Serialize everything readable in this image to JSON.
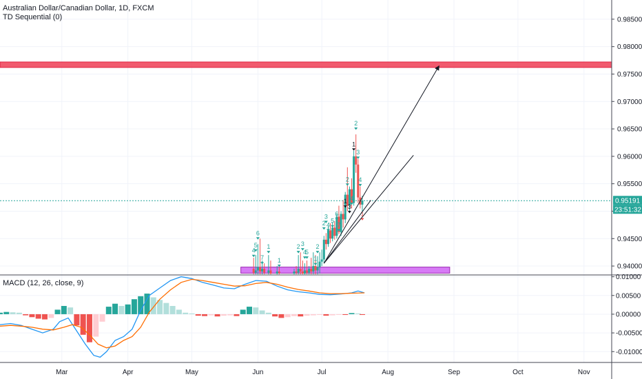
{
  "chart_data": {
    "type": "candlestick",
    "symbol_title": "Australian Dollar/Canadian Dollar, 1D, FXCM",
    "indicator_label": "TD Sequential (0)",
    "macd_label": "MACD (12, 26, close, 9)",
    "price_axis": {
      "ylim": [
        0.9385,
        0.9885
      ],
      "ticks": [
        "0.98500",
        "0.98000",
        "0.97500",
        "0.97000",
        "0.96500",
        "0.96000",
        "0.95500",
        "0.95000",
        "0.94500",
        "0.94000"
      ]
    },
    "macd_axis": {
      "ylim": [
        -0.0129,
        0.0103
      ],
      "ticks": [
        "0.01000",
        "0.00500",
        "0.00000",
        "-0.00500",
        "-0.01000"
      ]
    },
    "time_axis": {
      "labels": [
        "Mar",
        "Apr",
        "May",
        "Jun",
        "Jul",
        "Aug",
        "Sep",
        "Oct",
        "Nov"
      ],
      "label_days": [
        29,
        60,
        90,
        121,
        151,
        182,
        213,
        243,
        274
      ],
      "xlim": [
        0,
        287
      ]
    },
    "current_price": {
      "value": 0.95191,
      "label": "0.95191",
      "countdown": "23:51:32"
    },
    "zones": [
      {
        "name": "resistance",
        "y_from": 0.9762,
        "y_to": 0.9772,
        "x_from": 0,
        "x_to": 287,
        "fill": "#f0485e"
      },
      {
        "name": "support",
        "y_from": 0.9387,
        "y_to": 0.9398,
        "x_from": 113,
        "x_to": 211,
        "fill": "#d36cf5"
      }
    ],
    "trendlines": [
      {
        "x1": 152,
        "y1": 0.9405,
        "x2": 194,
        "y2": 0.9602
      },
      {
        "x1": 152,
        "y1": 0.9405,
        "x2": 206,
        "y2": 0.9765,
        "arrow": true
      },
      {
        "x1": 152,
        "y1": 0.9405,
        "x2": 174,
        "y2": 0.952
      }
    ],
    "candles": [
      {
        "day": 119,
        "open": 0.9395,
        "high": 0.9415,
        "low": 0.9385,
        "close": 0.9388
      },
      {
        "day": 120,
        "open": 0.9388,
        "high": 0.942,
        "low": 0.9385,
        "close": 0.9392
      },
      {
        "day": 121,
        "open": 0.9392,
        "high": 0.944,
        "low": 0.9385,
        "close": 0.9398
      },
      {
        "day": 122,
        "open": 0.9398,
        "high": 0.945,
        "low": 0.9385,
        "close": 0.939
      },
      {
        "day": 123,
        "open": 0.939,
        "high": 0.941,
        "low": 0.9385,
        "close": 0.9395
      },
      {
        "day": 124,
        "open": 0.9395,
        "high": 0.9405,
        "low": 0.9385,
        "close": 0.9388
      },
      {
        "day": 126,
        "open": 0.9388,
        "high": 0.942,
        "low": 0.9385,
        "close": 0.9392
      },
      {
        "day": 127,
        "open": 0.9392,
        "high": 0.941,
        "low": 0.9385,
        "close": 0.9386
      },
      {
        "day": 130,
        "open": 0.9386,
        "high": 0.94,
        "low": 0.9385,
        "close": 0.939
      },
      {
        "day": 131,
        "open": 0.939,
        "high": 0.9398,
        "low": 0.9385,
        "close": 0.9387
      },
      {
        "day": 138,
        "open": 0.9386,
        "high": 0.9395,
        "low": 0.9385,
        "close": 0.939
      },
      {
        "day": 139,
        "open": 0.939,
        "high": 0.94,
        "low": 0.9385,
        "close": 0.9388
      },
      {
        "day": 140,
        "open": 0.9388,
        "high": 0.942,
        "low": 0.9385,
        "close": 0.9395
      },
      {
        "day": 141,
        "open": 0.9395,
        "high": 0.9425,
        "low": 0.9385,
        "close": 0.939
      },
      {
        "day": 142,
        "open": 0.939,
        "high": 0.941,
        "low": 0.9385,
        "close": 0.9386
      },
      {
        "day": 143,
        "open": 0.9386,
        "high": 0.9405,
        "low": 0.9385,
        "close": 0.9392
      },
      {
        "day": 144,
        "open": 0.9392,
        "high": 0.941,
        "low": 0.9385,
        "close": 0.9388
      },
      {
        "day": 145,
        "open": 0.9388,
        "high": 0.94,
        "low": 0.9385,
        "close": 0.9395
      },
      {
        "day": 146,
        "open": 0.9395,
        "high": 0.9415,
        "low": 0.9385,
        "close": 0.939
      },
      {
        "day": 147,
        "open": 0.939,
        "high": 0.9425,
        "low": 0.9385,
        "close": 0.94
      },
      {
        "day": 148,
        "open": 0.94,
        "high": 0.942,
        "low": 0.9385,
        "close": 0.9392
      },
      {
        "day": 149,
        "open": 0.9392,
        "high": 0.9418,
        "low": 0.9385,
        "close": 0.9398
      },
      {
        "day": 150,
        "open": 0.9398,
        "high": 0.9425,
        "low": 0.9386,
        "close": 0.9408
      },
      {
        "day": 151,
        "open": 0.9408,
        "high": 0.943,
        "low": 0.94,
        "close": 0.9412
      },
      {
        "day": 152,
        "open": 0.9412,
        "high": 0.9455,
        "low": 0.9405,
        "close": 0.9448
      },
      {
        "day": 153,
        "open": 0.9448,
        "high": 0.946,
        "low": 0.943,
        "close": 0.944
      },
      {
        "day": 154,
        "open": 0.944,
        "high": 0.9472,
        "low": 0.9435,
        "close": 0.9465
      },
      {
        "day": 155,
        "open": 0.9465,
        "high": 0.9478,
        "low": 0.9442,
        "close": 0.945
      },
      {
        "day": 156,
        "open": 0.945,
        "high": 0.948,
        "low": 0.9445,
        "close": 0.947
      },
      {
        "day": 157,
        "open": 0.947,
        "high": 0.9482,
        "low": 0.9448,
        "close": 0.9455
      },
      {
        "day": 158,
        "open": 0.9455,
        "high": 0.9495,
        "low": 0.945,
        "close": 0.949
      },
      {
        "day": 159,
        "open": 0.949,
        "high": 0.951,
        "low": 0.9458,
        "close": 0.9462
      },
      {
        "day": 160,
        "open": 0.9462,
        "high": 0.95,
        "low": 0.9455,
        "close": 0.9495
      },
      {
        "day": 161,
        "open": 0.9495,
        "high": 0.952,
        "low": 0.947,
        "close": 0.9485
      },
      {
        "day": 162,
        "open": 0.9485,
        "high": 0.9535,
        "low": 0.9478,
        "close": 0.953
      },
      {
        "day": 163,
        "open": 0.953,
        "high": 0.958,
        "low": 0.95,
        "close": 0.951
      },
      {
        "day": 164,
        "open": 0.951,
        "high": 0.9545,
        "low": 0.95,
        "close": 0.954
      },
      {
        "day": 165,
        "open": 0.954,
        "high": 0.956,
        "low": 0.9505,
        "close": 0.9515
      },
      {
        "day": 166,
        "open": 0.9515,
        "high": 0.961,
        "low": 0.951,
        "close": 0.96
      },
      {
        "day": 167,
        "open": 0.96,
        "high": 0.964,
        "low": 0.957,
        "close": 0.9585
      },
      {
        "day": 168,
        "open": 0.9585,
        "high": 0.9595,
        "low": 0.9515,
        "close": 0.9525
      },
      {
        "day": 169,
        "open": 0.9525,
        "high": 0.9545,
        "low": 0.9505,
        "close": 0.9512
      },
      {
        "day": 170,
        "open": 0.9512,
        "high": 0.9528,
        "low": 0.9495,
        "close": 0.9519
      }
    ],
    "td_counts": [
      {
        "day": 119,
        "value": "4",
        "color": "#26a69a",
        "y": 0.9418
      },
      {
        "day": 120,
        "value": "5",
        "color": "#26a69a",
        "y": 0.9428
      },
      {
        "day": 121,
        "value": "6",
        "color": "#26a69a",
        "y": 0.945
      },
      {
        "day": 123,
        "value": "7",
        "color": "#26a69a",
        "y": 0.9405
      },
      {
        "day": 126,
        "value": "1",
        "color": "#26a69a",
        "y": 0.9425
      },
      {
        "day": 131,
        "value": "1",
        "color": "#26a69a",
        "y": 0.94
      },
      {
        "day": 140,
        "value": "2",
        "color": "#26a69a",
        "y": 0.9425
      },
      {
        "day": 142,
        "value": "3",
        "color": "#26a69a",
        "y": 0.943
      },
      {
        "day": 143,
        "value": "4",
        "color": "#26a69a",
        "y": 0.9415
      },
      {
        "day": 144,
        "value": "5",
        "color": "#26a69a",
        "y": 0.9415
      },
      {
        "day": 148,
        "value": "1",
        "color": "#26a69a",
        "y": 0.9403
      },
      {
        "day": 149,
        "value": "2",
        "color": "#26a69a",
        "y": 0.9425
      },
      {
        "day": 152,
        "value": "2",
        "color": "#26a69a",
        "y": 0.9468
      },
      {
        "day": 153,
        "value": "3",
        "color": "#26a69a",
        "y": 0.948
      },
      {
        "day": 154,
        "value": "4",
        "color": "#26a69a",
        "y": 0.9465
      },
      {
        "day": 156,
        "value": "5",
        "color": "#26a69a",
        "y": 0.9472
      },
      {
        "day": 158,
        "value": "6",
        "color": "#26a69a",
        "y": 0.9485
      },
      {
        "day": 159,
        "value": "7",
        "color": "#26a69a",
        "y": 0.9465
      },
      {
        "day": 162,
        "value": "1",
        "color": "#131722",
        "y": 0.9508
      },
      {
        "day": 163,
        "value": "2",
        "color": "#26a69a",
        "y": 0.9548
      },
      {
        "day": 164,
        "value": "3",
        "color": "#131722",
        "y": 0.9498
      },
      {
        "day": 165,
        "value": "4",
        "color": "#26a69a",
        "y": 0.9513
      },
      {
        "day": 166,
        "value": "1",
        "color": "#131722",
        "y": 0.9612
      },
      {
        "day": 167,
        "value": "2",
        "color": "#26a69a",
        "y": 0.965
      },
      {
        "day": 168,
        "value": "3",
        "color": "#26a69a",
        "y": 0.9597
      },
      {
        "day": 169,
        "value": "4",
        "color": "#26a69a",
        "y": 0.9547
      },
      {
        "day": 170,
        "value": "1",
        "color": "#ef5350",
        "y": 0.9485
      }
    ],
    "macd": {
      "line_color": "#2196f3",
      "signal_color": "#ff6d00",
      "histogram": [
        {
          "day": 0,
          "value": 0.0004
        },
        {
          "day": 3,
          "value": 0.0006
        },
        {
          "day": 6,
          "value": 0.0005
        },
        {
          "day": 9,
          "value": 0.0004
        },
        {
          "day": 12,
          "value": -0.0003
        },
        {
          "day": 15,
          "value": -0.0008
        },
        {
          "day": 18,
          "value": -0.0012
        },
        {
          "day": 21,
          "value": -0.0014
        },
        {
          "day": 24,
          "value": -0.001
        },
        {
          "day": 27,
          "value": 0.0012
        },
        {
          "day": 30,
          "value": 0.0022
        },
        {
          "day": 33,
          "value": 0.0018
        },
        {
          "day": 36,
          "value": -0.003
        },
        {
          "day": 39,
          "value": -0.0055
        },
        {
          "day": 42,
          "value": -0.0075
        },
        {
          "day": 45,
          "value": -0.006
        },
        {
          "day": 48,
          "value": -0.002
        },
        {
          "day": 51,
          "value": 0.002
        },
        {
          "day": 54,
          "value": 0.0028
        },
        {
          "day": 57,
          "value": 0.0022
        },
        {
          "day": 60,
          "value": 0.0026
        },
        {
          "day": 63,
          "value": 0.004
        },
        {
          "day": 66,
          "value": 0.0048
        },
        {
          "day": 69,
          "value": 0.0055
        },
        {
          "day": 72,
          "value": 0.0045
        },
        {
          "day": 75,
          "value": 0.0038
        },
        {
          "day": 78,
          "value": 0.003
        },
        {
          "day": 81,
          "value": 0.0022
        },
        {
          "day": 84,
          "value": 0.0012
        },
        {
          "day": 87,
          "value": 0.0004
        },
        {
          "day": 90,
          "value": 0.0002
        },
        {
          "day": 93,
          "value": -0.0004
        },
        {
          "day": 96,
          "value": -0.0005
        },
        {
          "day": 99,
          "value": -0.0003
        },
        {
          "day": 102,
          "value": -0.0006
        },
        {
          "day": 105,
          "value": -0.0004
        },
        {
          "day": 108,
          "value": -0.0003
        },
        {
          "day": 111,
          "value": -0.0005
        },
        {
          "day": 114,
          "value": 0.0012
        },
        {
          "day": 117,
          "value": 0.002
        },
        {
          "day": 120,
          "value": 0.0018
        },
        {
          "day": 123,
          "value": 0.001
        },
        {
          "day": 126,
          "value": 0.0004
        },
        {
          "day": 129,
          "value": -0.0006
        },
        {
          "day": 132,
          "value": -0.001
        },
        {
          "day": 135,
          "value": -0.0008
        },
        {
          "day": 138,
          "value": -0.0005
        },
        {
          "day": 141,
          "value": -0.0006
        },
        {
          "day": 144,
          "value": -0.0004
        },
        {
          "day": 147,
          "value": -0.0003
        },
        {
          "day": 150,
          "value": -0.0002
        },
        {
          "day": 153,
          "value": -0.0004
        },
        {
          "day": 156,
          "value": -0.0003
        },
        {
          "day": 159,
          "value": -0.0001
        },
        {
          "day": 162,
          "value": -0.0002
        },
        {
          "day": 165,
          "value": 0.0003
        },
        {
          "day": 168,
          "value": 0.0002
        },
        {
          "day": 170,
          "value": -0.0002
        }
      ],
      "macd_line": [
        {
          "day": 0,
          "value": -0.0028
        },
        {
          "day": 5,
          "value": -0.0025
        },
        {
          "day": 10,
          "value": -0.003
        },
        {
          "day": 15,
          "value": -0.004
        },
        {
          "day": 20,
          "value": -0.005
        },
        {
          "day": 25,
          "value": -0.004
        },
        {
          "day": 28,
          "value": -0.002
        },
        {
          "day": 32,
          "value": -0.001
        },
        {
          "day": 36,
          "value": -0.0045
        },
        {
          "day": 40,
          "value": -0.008
        },
        {
          "day": 44,
          "value": -0.011
        },
        {
          "day": 47,
          "value": -0.0115
        },
        {
          "day": 50,
          "value": -0.01
        },
        {
          "day": 54,
          "value": -0.007
        },
        {
          "day": 58,
          "value": -0.006
        },
        {
          "day": 62,
          "value": -0.004
        },
        {
          "day": 66,
          "value": 0.001
        },
        {
          "day": 70,
          "value": 0.005
        },
        {
          "day": 75,
          "value": 0.007
        },
        {
          "day": 80,
          "value": 0.009
        },
        {
          "day": 85,
          "value": 0.01
        },
        {
          "day": 90,
          "value": 0.0095
        },
        {
          "day": 95,
          "value": 0.0085
        },
        {
          "day": 100,
          "value": 0.0078
        },
        {
          "day": 105,
          "value": 0.007
        },
        {
          "day": 110,
          "value": 0.0068
        },
        {
          "day": 115,
          "value": 0.008
        },
        {
          "day": 120,
          "value": 0.009
        },
        {
          "day": 125,
          "value": 0.0088
        },
        {
          "day": 130,
          "value": 0.0075
        },
        {
          "day": 135,
          "value": 0.0065
        },
        {
          "day": 140,
          "value": 0.006
        },
        {
          "day": 145,
          "value": 0.0057
        },
        {
          "day": 150,
          "value": 0.0053
        },
        {
          "day": 155,
          "value": 0.0052
        },
        {
          "day": 160,
          "value": 0.0054
        },
        {
          "day": 165,
          "value": 0.0057
        },
        {
          "day": 168,
          "value": 0.0062
        },
        {
          "day": 171,
          "value": 0.0057
        }
      ],
      "signal_line": [
        {
          "day": 0,
          "value": -0.0032
        },
        {
          "day": 5,
          "value": -0.003
        },
        {
          "day": 10,
          "value": -0.0032
        },
        {
          "day": 15,
          "value": -0.0035
        },
        {
          "day": 20,
          "value": -0.004
        },
        {
          "day": 25,
          "value": -0.0042
        },
        {
          "day": 30,
          "value": -0.0035
        },
        {
          "day": 34,
          "value": -0.0028
        },
        {
          "day": 38,
          "value": -0.0035
        },
        {
          "day": 42,
          "value": -0.0055
        },
        {
          "day": 46,
          "value": -0.008
        },
        {
          "day": 50,
          "value": -0.009
        },
        {
          "day": 54,
          "value": -0.0085
        },
        {
          "day": 58,
          "value": -0.007
        },
        {
          "day": 62,
          "value": -0.006
        },
        {
          "day": 66,
          "value": -0.0035
        },
        {
          "day": 70,
          "value": 0.0005
        },
        {
          "day": 75,
          "value": 0.004
        },
        {
          "day": 80,
          "value": 0.0065
        },
        {
          "day": 85,
          "value": 0.0085
        },
        {
          "day": 90,
          "value": 0.0093
        },
        {
          "day": 95,
          "value": 0.009
        },
        {
          "day": 100,
          "value": 0.0085
        },
        {
          "day": 105,
          "value": 0.008
        },
        {
          "day": 110,
          "value": 0.0075
        },
        {
          "day": 115,
          "value": 0.0076
        },
        {
          "day": 120,
          "value": 0.0082
        },
        {
          "day": 125,
          "value": 0.0085
        },
        {
          "day": 130,
          "value": 0.008
        },
        {
          "day": 135,
          "value": 0.0072
        },
        {
          "day": 140,
          "value": 0.0066
        },
        {
          "day": 145,
          "value": 0.0062
        },
        {
          "day": 150,
          "value": 0.0057
        },
        {
          "day": 155,
          "value": 0.0055
        },
        {
          "day": 160,
          "value": 0.0055
        },
        {
          "day": 165,
          "value": 0.0056
        },
        {
          "day": 171,
          "value": 0.0057
        }
      ]
    },
    "colors": {
      "up": "#26a69a",
      "down": "#ef5350",
      "hist_up_strong": "#26a69a",
      "hist_up_weak": "#b2dfdb",
      "hist_down_strong": "#ef5350",
      "hist_down_weak": "#ffcdd2"
    }
  }
}
